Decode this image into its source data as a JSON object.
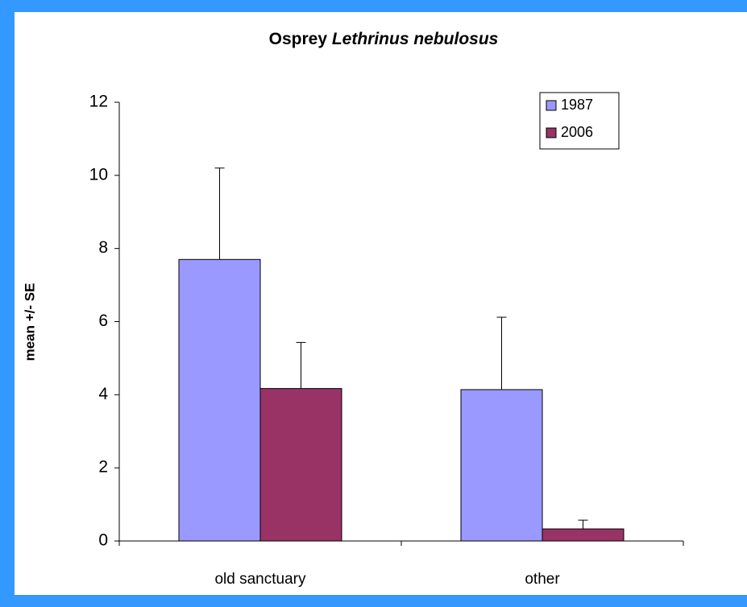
{
  "chart_data": {
    "type": "bar",
    "title": "Osprey",
    "title_italic": "Lethrinus nebulosus",
    "y_label": "mean  +/- SE",
    "categories": [
      "old sanctuary",
      "other"
    ],
    "series": [
      {
        "name": "1987",
        "color": "#9999ff",
        "values": [
          7.7,
          4.14
        ],
        "errors": [
          2.5,
          1.98
        ]
      },
      {
        "name": "2006",
        "color": "#993366",
        "values": [
          4.17,
          0.33
        ],
        "errors": [
          1.26,
          0.24
        ]
      }
    ],
    "ylim": [
      0,
      12
    ],
    "yticks": [
      0,
      2,
      4,
      6,
      8,
      10,
      12
    ],
    "legend": "top-right"
  }
}
